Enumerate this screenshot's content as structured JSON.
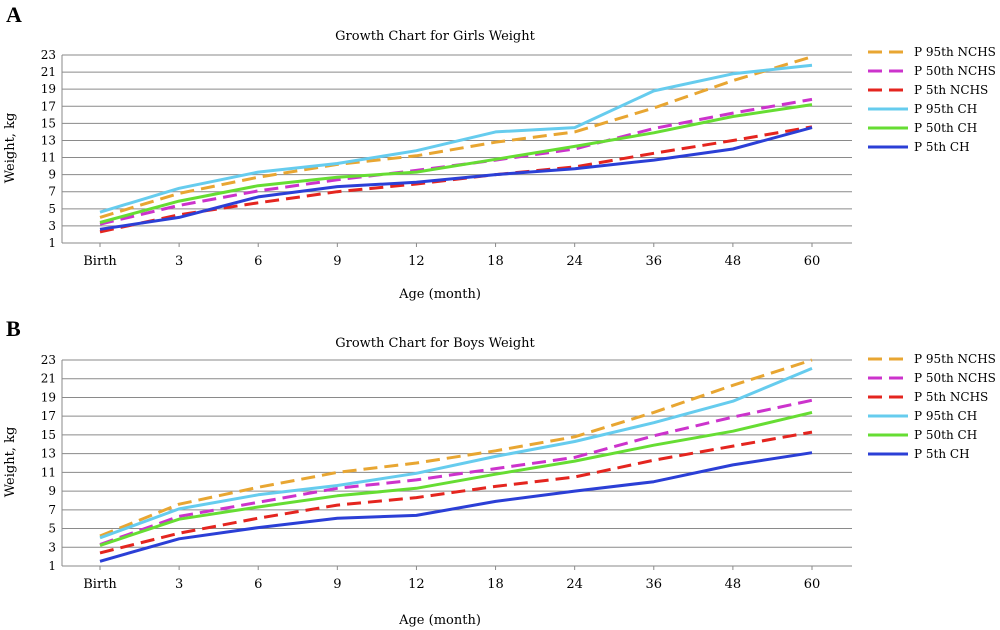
{
  "chart_data": [
    {
      "panel": "A",
      "type": "line",
      "title": "Growth Chart for Girls Weight",
      "xlabel": "Age (month)",
      "ylabel": "Weight, kg",
      "categories": [
        "Birth",
        "3",
        "6",
        "9",
        "12",
        "18",
        "24",
        "36",
        "48",
        "60"
      ],
      "yticks": [
        1,
        3,
        5,
        7,
        9,
        11,
        13,
        15,
        17,
        19,
        21,
        23
      ],
      "ylim": [
        1,
        23
      ],
      "grid": true,
      "legend_position": "right",
      "series": [
        {
          "name": "P 95th NCHS",
          "color": "#e8a632",
          "dash": true,
          "values": [
            4.0,
            6.8,
            8.7,
            10.2,
            11.2,
            12.8,
            14.0,
            16.8,
            20.0,
            22.8
          ]
        },
        {
          "name": "P 50th NCHS",
          "color": "#cc33cc",
          "dash": true,
          "values": [
            3.2,
            5.4,
            7.1,
            8.4,
            9.5,
            10.7,
            12.0,
            14.4,
            16.2,
            17.8
          ]
        },
        {
          "name": "P 5th NCHS",
          "color": "#e4251f",
          "dash": true,
          "values": [
            2.3,
            4.3,
            5.7,
            7.0,
            7.9,
            9.0,
            9.9,
            11.5,
            13.0,
            14.6
          ]
        },
        {
          "name": "P 95th CH",
          "color": "#66ccee",
          "dash": false,
          "values": [
            4.6,
            7.4,
            9.3,
            10.3,
            11.8,
            14.0,
            14.5,
            18.8,
            20.8,
            21.8
          ]
        },
        {
          "name": "P 50th CH",
          "color": "#66dd33",
          "dash": false,
          "values": [
            3.4,
            5.9,
            7.7,
            8.7,
            9.3,
            10.8,
            12.3,
            13.9,
            15.8,
            17.2
          ]
        },
        {
          "name": "P 5th CH",
          "color": "#2b3fd6",
          "dash": false,
          "values": [
            2.6,
            4.0,
            6.4,
            7.6,
            8.1,
            9.0,
            9.7,
            10.7,
            12.0,
            14.5
          ]
        }
      ]
    },
    {
      "panel": "B",
      "type": "line",
      "title": "Growth Chart for Boys Weight",
      "xlabel": "Age (month)",
      "ylabel": "Weight, kg",
      "categories": [
        "Birth",
        "3",
        "6",
        "9",
        "12",
        "18",
        "24",
        "36",
        "48",
        "60"
      ],
      "yticks": [
        1,
        3,
        5,
        7,
        9,
        11,
        13,
        15,
        17,
        19,
        21,
        23
      ],
      "ylim": [
        1,
        23
      ],
      "grid": true,
      "legend_position": "right",
      "series": [
        {
          "name": "P 95th NCHS",
          "color": "#e8a632",
          "dash": true,
          "values": [
            4.2,
            7.6,
            9.4,
            11.0,
            12.0,
            13.3,
            14.8,
            17.4,
            20.3,
            23.0
          ]
        },
        {
          "name": "P 50th NCHS",
          "color": "#cc33cc",
          "dash": true,
          "values": [
            3.3,
            6.3,
            7.8,
            9.3,
            10.2,
            11.4,
            12.6,
            14.9,
            16.9,
            18.7
          ]
        },
        {
          "name": "P 5th NCHS",
          "color": "#e4251f",
          "dash": true,
          "values": [
            2.4,
            4.5,
            6.1,
            7.5,
            8.3,
            9.5,
            10.5,
            12.3,
            13.8,
            15.3
          ]
        },
        {
          "name": "P 95th CH",
          "color": "#66ccee",
          "dash": false,
          "values": [
            4.0,
            7.1,
            8.6,
            9.6,
            10.9,
            12.7,
            14.3,
            16.3,
            18.6,
            22.1
          ]
        },
        {
          "name": "P 50th CH",
          "color": "#66dd33",
          "dash": false,
          "values": [
            3.2,
            6.0,
            7.3,
            8.5,
            9.3,
            10.8,
            12.2,
            13.9,
            15.4,
            17.4
          ]
        },
        {
          "name": "P 5th CH",
          "color": "#2b3fd6",
          "dash": false,
          "values": [
            1.5,
            3.9,
            5.1,
            6.1,
            6.4,
            7.9,
            9.0,
            10.0,
            11.8,
            13.1
          ]
        }
      ]
    }
  ]
}
